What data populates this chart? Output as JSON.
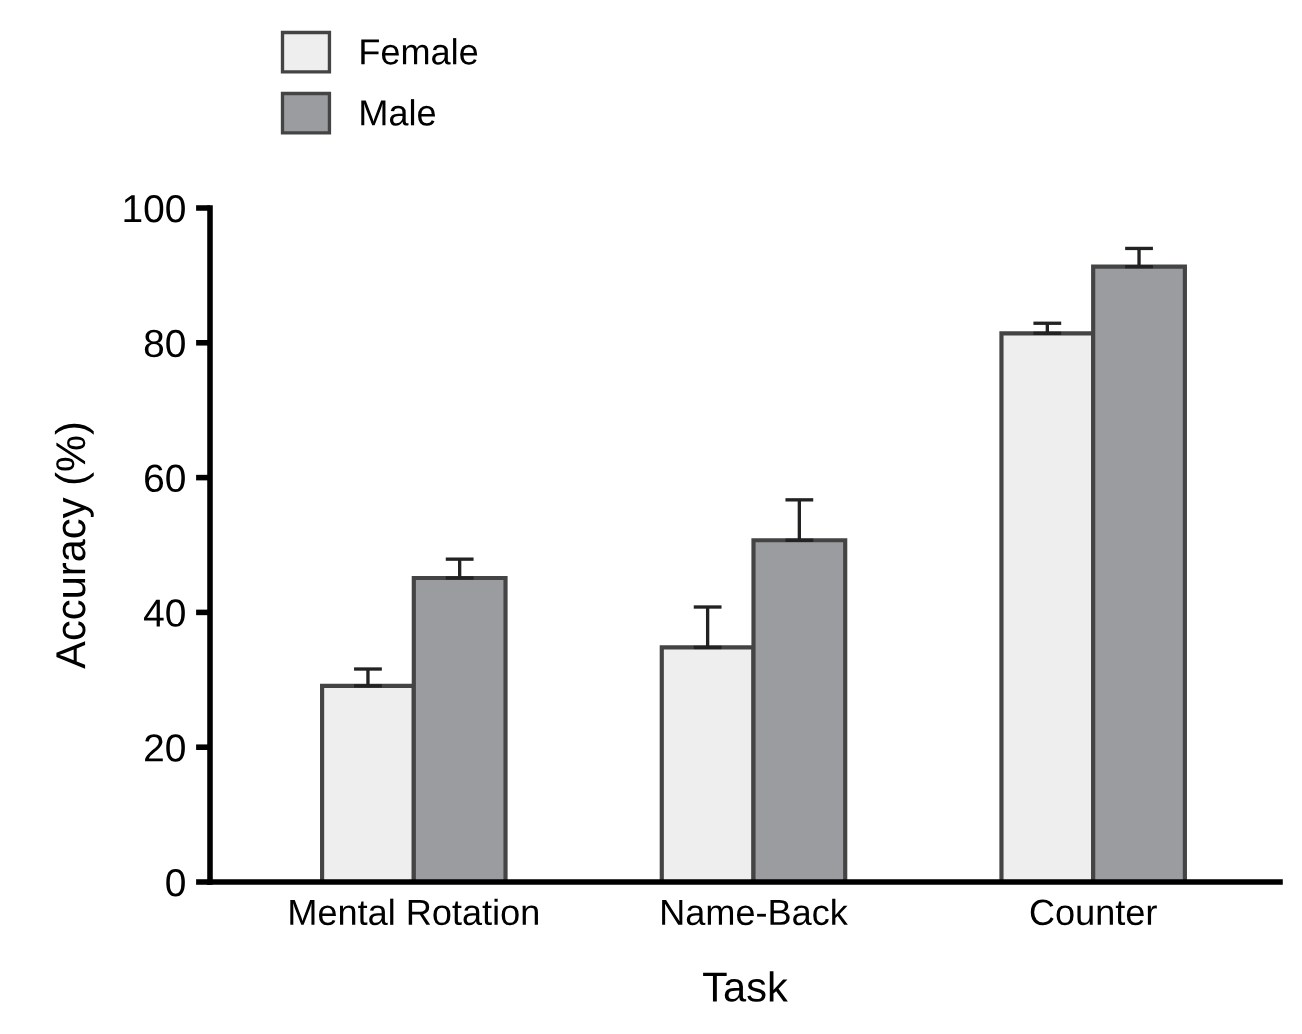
{
  "chart_data": {
    "type": "bar",
    "xlabel": "Task",
    "ylabel": "Accuracy (%)",
    "categories": [
      "Mental Rotation",
      "Name-Back",
      "Counter"
    ],
    "series": [
      {
        "name": "Female",
        "color": "#eeeeee",
        "values": [
          29.1,
          34.8,
          81.4
        ],
        "errors": [
          2.5,
          6,
          1.5
        ]
      },
      {
        "name": "Male",
        "color": "#9b9c9f",
        "values": [
          45.1,
          50.7,
          91.3
        ],
        "errors": [
          2.8,
          6,
          2.7
        ]
      }
    ],
    "ylim": [
      0,
      100
    ],
    "yticks": [
      0,
      20,
      40,
      60,
      80,
      100
    ],
    "grid": false,
    "legend": "top left"
  }
}
